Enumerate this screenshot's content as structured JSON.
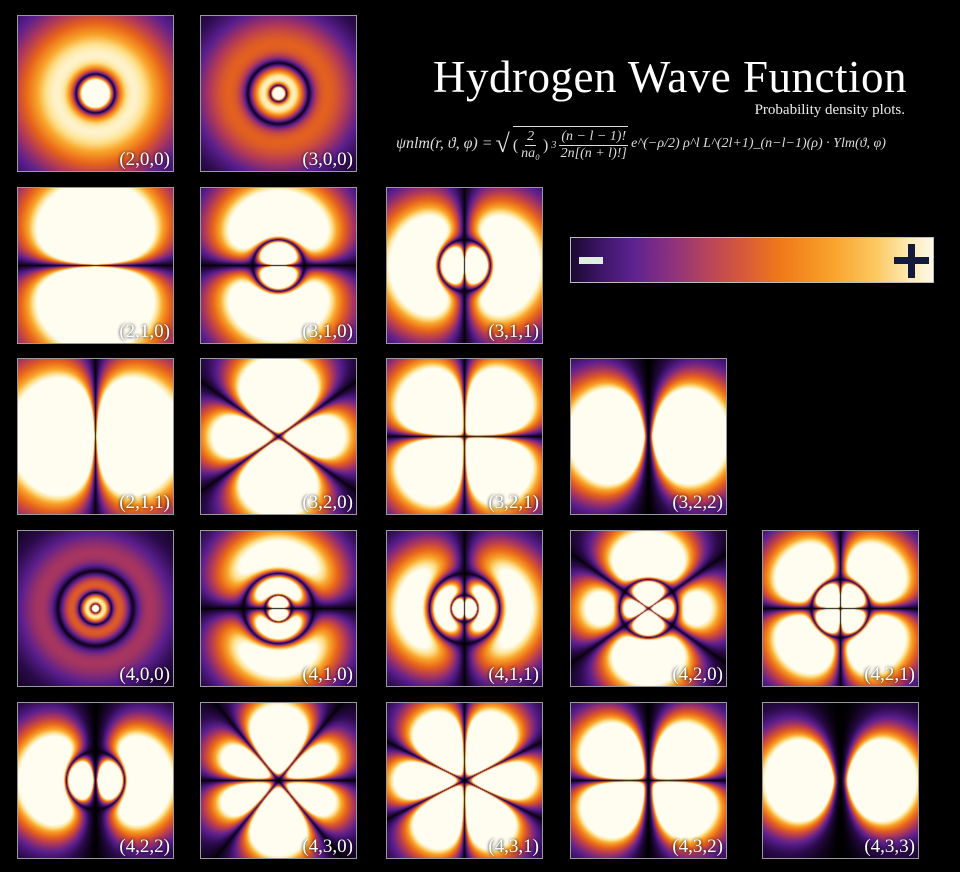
{
  "title": "Hydrogen Wave Function",
  "subtitle": "Probability density plots.",
  "formula": {
    "lhs": "ψnlm(r, ϑ, φ) =",
    "sqrt_symbol": "√",
    "frac1_num": "2",
    "frac1_den": "na₀",
    "power": "3",
    "frac2_num": "(n − l − 1)!",
    "frac2_den": "2n[(n + l)!]",
    "rest": "e^(−ρ/2) ρ^l L^(2l+1)_(n−l−1)(ρ) · Ylm(ϑ, φ)"
  },
  "colorbar": {
    "minus_symbol": "−",
    "plus_symbol": "+",
    "colors": [
      "#1a0830",
      "#5b2290",
      "#b8455a",
      "#ef7a18",
      "#fcc860",
      "#fff8e6"
    ],
    "minus_color": "#dfeedd",
    "plus_color": "#121a3e"
  },
  "orbitals": [
    {
      "label": "(2,0,0)",
      "n": 2,
      "l": 0,
      "m": 0
    },
    {
      "label": "(3,0,0)",
      "n": 3,
      "l": 0,
      "m": 0
    },
    {
      "label": "(2,1,0)",
      "n": 2,
      "l": 1,
      "m": 0
    },
    {
      "label": "(3,1,0)",
      "n": 3,
      "l": 1,
      "m": 0
    },
    {
      "label": "(3,1,1)",
      "n": 3,
      "l": 1,
      "m": 1
    },
    {
      "label": "(2,1,1)",
      "n": 2,
      "l": 1,
      "m": 1
    },
    {
      "label": "(3,2,0)",
      "n": 3,
      "l": 2,
      "m": 0
    },
    {
      "label": "(3,2,1)",
      "n": 3,
      "l": 2,
      "m": 1
    },
    {
      "label": "(3,2,2)",
      "n": 3,
      "l": 2,
      "m": 2
    },
    {
      "label": "(4,0,0)",
      "n": 4,
      "l": 0,
      "m": 0
    },
    {
      "label": "(4,1,0)",
      "n": 4,
      "l": 1,
      "m": 0
    },
    {
      "label": "(4,1,1)",
      "n": 4,
      "l": 1,
      "m": 1
    },
    {
      "label": "(4,2,0)",
      "n": 4,
      "l": 2,
      "m": 0
    },
    {
      "label": "(4,2,1)",
      "n": 4,
      "l": 2,
      "m": 1
    },
    {
      "label": "(4,2,2)",
      "n": 4,
      "l": 2,
      "m": 2
    },
    {
      "label": "(4,3,0)",
      "n": 4,
      "l": 3,
      "m": 0
    },
    {
      "label": "(4,3,1)",
      "n": 4,
      "l": 3,
      "m": 1
    },
    {
      "label": "(4,3,2)",
      "n": 4,
      "l": 3,
      "m": 2
    },
    {
      "label": "(4,3,3)",
      "n": 4,
      "l": 3,
      "m": 3
    }
  ]
}
